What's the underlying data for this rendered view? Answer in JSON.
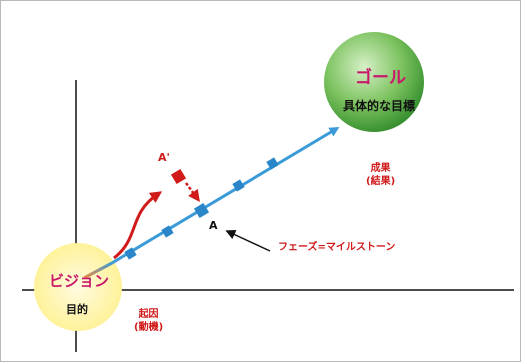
{
  "goal": {
    "title": "ゴール",
    "subtitle": "具体的な目標"
  },
  "vision": {
    "title": "ビジョン",
    "subtitle": "目的"
  },
  "result": {
    "line1": "成果",
    "line2": "(結果)"
  },
  "cause": {
    "line1": "起因",
    "line2": "(動機)"
  },
  "point_a": "A",
  "point_a_prime": "A'",
  "milestone_label": "フェーズ=マイルストーン",
  "colors": {
    "goal_circle": "#3d9a35",
    "vision_circle": "#fff2a0",
    "path_line": "#3a9bd8",
    "milestone_marker": "#2a86c8",
    "deviation": "#d11a1a",
    "title_text": "#c8186c"
  }
}
